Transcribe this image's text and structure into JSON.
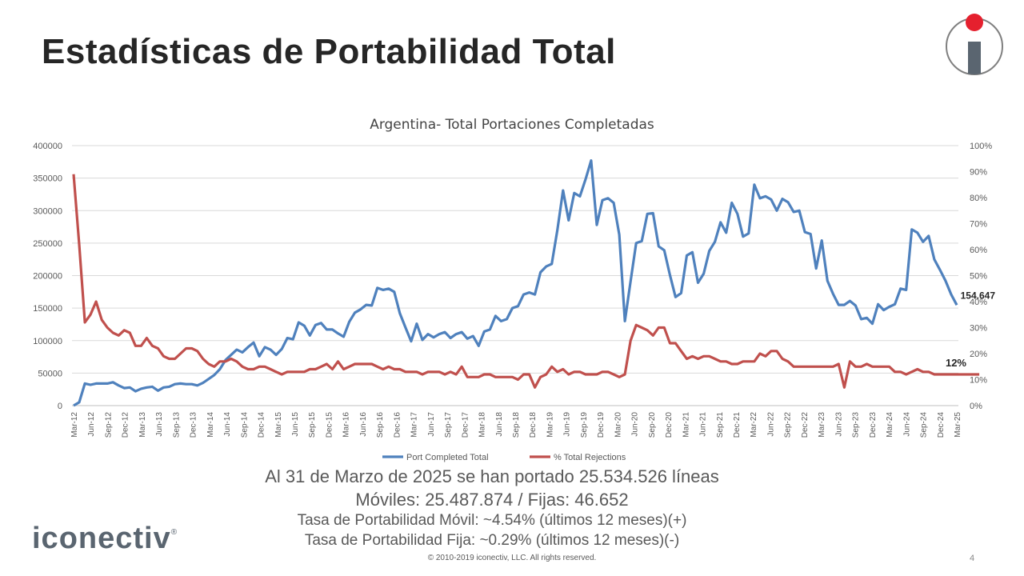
{
  "header": {
    "title": "Estadísticas de Portabilidad Total"
  },
  "brand": {
    "name": "iconectiv",
    "mark": "®"
  },
  "footer": {
    "copyright": "© 2010-2019 iconectiv, LLC. All rights reserved.",
    "page": "4"
  },
  "summary": {
    "line1": "Al 31 de Marzo de 2025 se han portado 25.534.526 líneas",
    "line2": "Móviles: 25.487.874 / Fijas: 46.652",
    "line3": "Tasa de Portabilidad Móvil: ~4.54% (últimos 12 meses)(+)",
    "line4": "Tasa de Portabilidad Fija: ~0.29% (últimos 12 meses)(-)"
  },
  "colors": {
    "port_series": "#4f81bd",
    "rejection_series": "#c0504d",
    "logo_red": "#e5202e",
    "logo_gray": "#5a6570"
  },
  "chart_data": {
    "type": "line",
    "title": "Argentina- Total Portaciones Completadas",
    "x_tick_labels": [
      "Mar-12",
      "Jun-12",
      "Sep-12",
      "Dec-12",
      "Mar-13",
      "Jun-13",
      "Sep-13",
      "Dec-13",
      "Mar-14",
      "Jun-14",
      "Sep-14",
      "Dec-14",
      "Mar-15",
      "Jun-15",
      "Sep-15",
      "Dec-15",
      "Mar-16",
      "Jun-16",
      "Sep-16",
      "Dec-16",
      "Mar-17",
      "Jun-17",
      "Sep-17",
      "Dec-17",
      "Mar-18",
      "Jun-18",
      "Sep-18",
      "Dec-18",
      "Mar-19",
      "Jun-19",
      "Sep-19",
      "Dec-19",
      "Mar-20",
      "Jun-20",
      "Sep-20",
      "Dec-20",
      "Mar-21",
      "Jun-21",
      "Sep-21",
      "Dec-21",
      "Mar-22",
      "Jun-22",
      "Sep-22",
      "Dec-22",
      "Mar-23",
      "Jun-23",
      "Sep-23",
      "Dec-23",
      "Mar-24",
      "Jun-24",
      "Sep-24",
      "Dec-24",
      "Mar-25"
    ],
    "y_left": {
      "min": 0,
      "max": 400000,
      "ticks": [
        "0",
        "50000",
        "100000",
        "150000",
        "200000",
        "250000",
        "300000",
        "350000",
        "400000"
      ]
    },
    "y_right": {
      "min": 0,
      "max": 1,
      "ticks": [
        "0%",
        "10%",
        "20%",
        "30%",
        "40%",
        "50%",
        "60%",
        "70%",
        "80%",
        "90%",
        "100%"
      ]
    },
    "grid": true,
    "legend_position": "bottom",
    "series": [
      {
        "name": "Port Completed Total",
        "axis": "left",
        "values": [
          0,
          5000,
          34000,
          32000,
          34000,
          34000,
          34000,
          36000,
          31000,
          27000,
          28000,
          22000,
          26000,
          28000,
          29000,
          23000,
          28000,
          29000,
          33000,
          34000,
          33000,
          33000,
          31000,
          35000,
          41000,
          47000,
          56000,
          70000,
          78000,
          86000,
          82000,
          90000,
          97000,
          76000,
          90000,
          86000,
          78000,
          87000,
          104000,
          102000,
          128000,
          123000,
          108000,
          124000,
          127000,
          117000,
          117000,
          111000,
          106000,
          129000,
          143000,
          148000,
          155000,
          154000,
          181000,
          178000,
          180000,
          175000,
          142000,
          120000,
          99000,
          126000,
          101000,
          110000,
          105000,
          110000,
          113000,
          104000,
          110000,
          113000,
          103000,
          107000,
          92000,
          114000,
          117000,
          138000,
          130000,
          133000,
          150000,
          153000,
          171000,
          174000,
          171000,
          205000,
          214000,
          218000,
          270000,
          331000,
          285000,
          327000,
          322000,
          348000,
          377000,
          278000,
          316000,
          319000,
          312000,
          263000,
          130000,
          191000,
          250000,
          253000,
          295000,
          296000,
          245000,
          239000,
          201000,
          167000,
          173000,
          231000,
          236000,
          189000,
          203000,
          238000,
          252000,
          282000,
          266000,
          312000,
          295000,
          260000,
          265000,
          340000,
          319000,
          322000,
          317000,
          300000,
          318000,
          313000,
          298000,
          300000,
          267000,
          264000,
          211000,
          254000,
          192000,
          172000,
          155000,
          155000,
          161000,
          154000,
          133000,
          135000,
          126000,
          156000,
          147000,
          152000,
          156000,
          180000,
          178000,
          271000,
          266000,
          252000,
          261000,
          225000,
          209000,
          192000,
          171000,
          154647
        ]
      },
      {
        "name": "% Total Rejections",
        "axis": "right",
        "values": [
          0.89,
          0.62,
          0.32,
          0.35,
          0.4,
          0.33,
          0.3,
          0.28,
          0.27,
          0.29,
          0.28,
          0.23,
          0.23,
          0.26,
          0.23,
          0.22,
          0.19,
          0.18,
          0.18,
          0.2,
          0.22,
          0.22,
          0.21,
          0.18,
          0.16,
          0.15,
          0.17,
          0.17,
          0.18,
          0.17,
          0.15,
          0.14,
          0.14,
          0.15,
          0.15,
          0.14,
          0.13,
          0.12,
          0.13,
          0.13,
          0.13,
          0.13,
          0.14,
          0.14,
          0.15,
          0.16,
          0.14,
          0.17,
          0.14,
          0.15,
          0.16,
          0.16,
          0.16,
          0.16,
          0.15,
          0.14,
          0.15,
          0.14,
          0.14,
          0.13,
          0.13,
          0.13,
          0.12,
          0.13,
          0.13,
          0.13,
          0.12,
          0.13,
          0.12,
          0.15,
          0.11,
          0.11,
          0.11,
          0.12,
          0.12,
          0.11,
          0.11,
          0.11,
          0.11,
          0.1,
          0.12,
          0.12,
          0.07,
          0.11,
          0.12,
          0.15,
          0.13,
          0.14,
          0.12,
          0.13,
          0.13,
          0.12,
          0.12,
          0.12,
          0.13,
          0.13,
          0.12,
          0.11,
          0.12,
          0.25,
          0.31,
          0.3,
          0.29,
          0.27,
          0.3,
          0.3,
          0.24,
          0.24,
          0.21,
          0.18,
          0.19,
          0.18,
          0.19,
          0.19,
          0.18,
          0.17,
          0.17,
          0.16,
          0.16,
          0.17,
          0.17,
          0.17,
          0.2,
          0.19,
          0.21,
          0.21,
          0.18,
          0.17,
          0.15,
          0.15,
          0.15,
          0.15,
          0.15,
          0.15,
          0.15,
          0.15,
          0.16,
          0.07,
          0.17,
          0.15,
          0.15,
          0.16,
          0.15,
          0.15,
          0.15,
          0.15,
          0.13,
          0.13,
          0.12,
          0.13,
          0.14,
          0.13,
          0.13,
          0.12,
          0.12,
          0.12,
          0.12,
          0.12,
          0.12,
          0.12,
          0.12,
          0.12
        ]
      }
    ],
    "annotations": [
      {
        "series": "Port Completed Total",
        "label": "154.647"
      },
      {
        "series": "% Total Rejections",
        "label": "12%"
      }
    ]
  }
}
